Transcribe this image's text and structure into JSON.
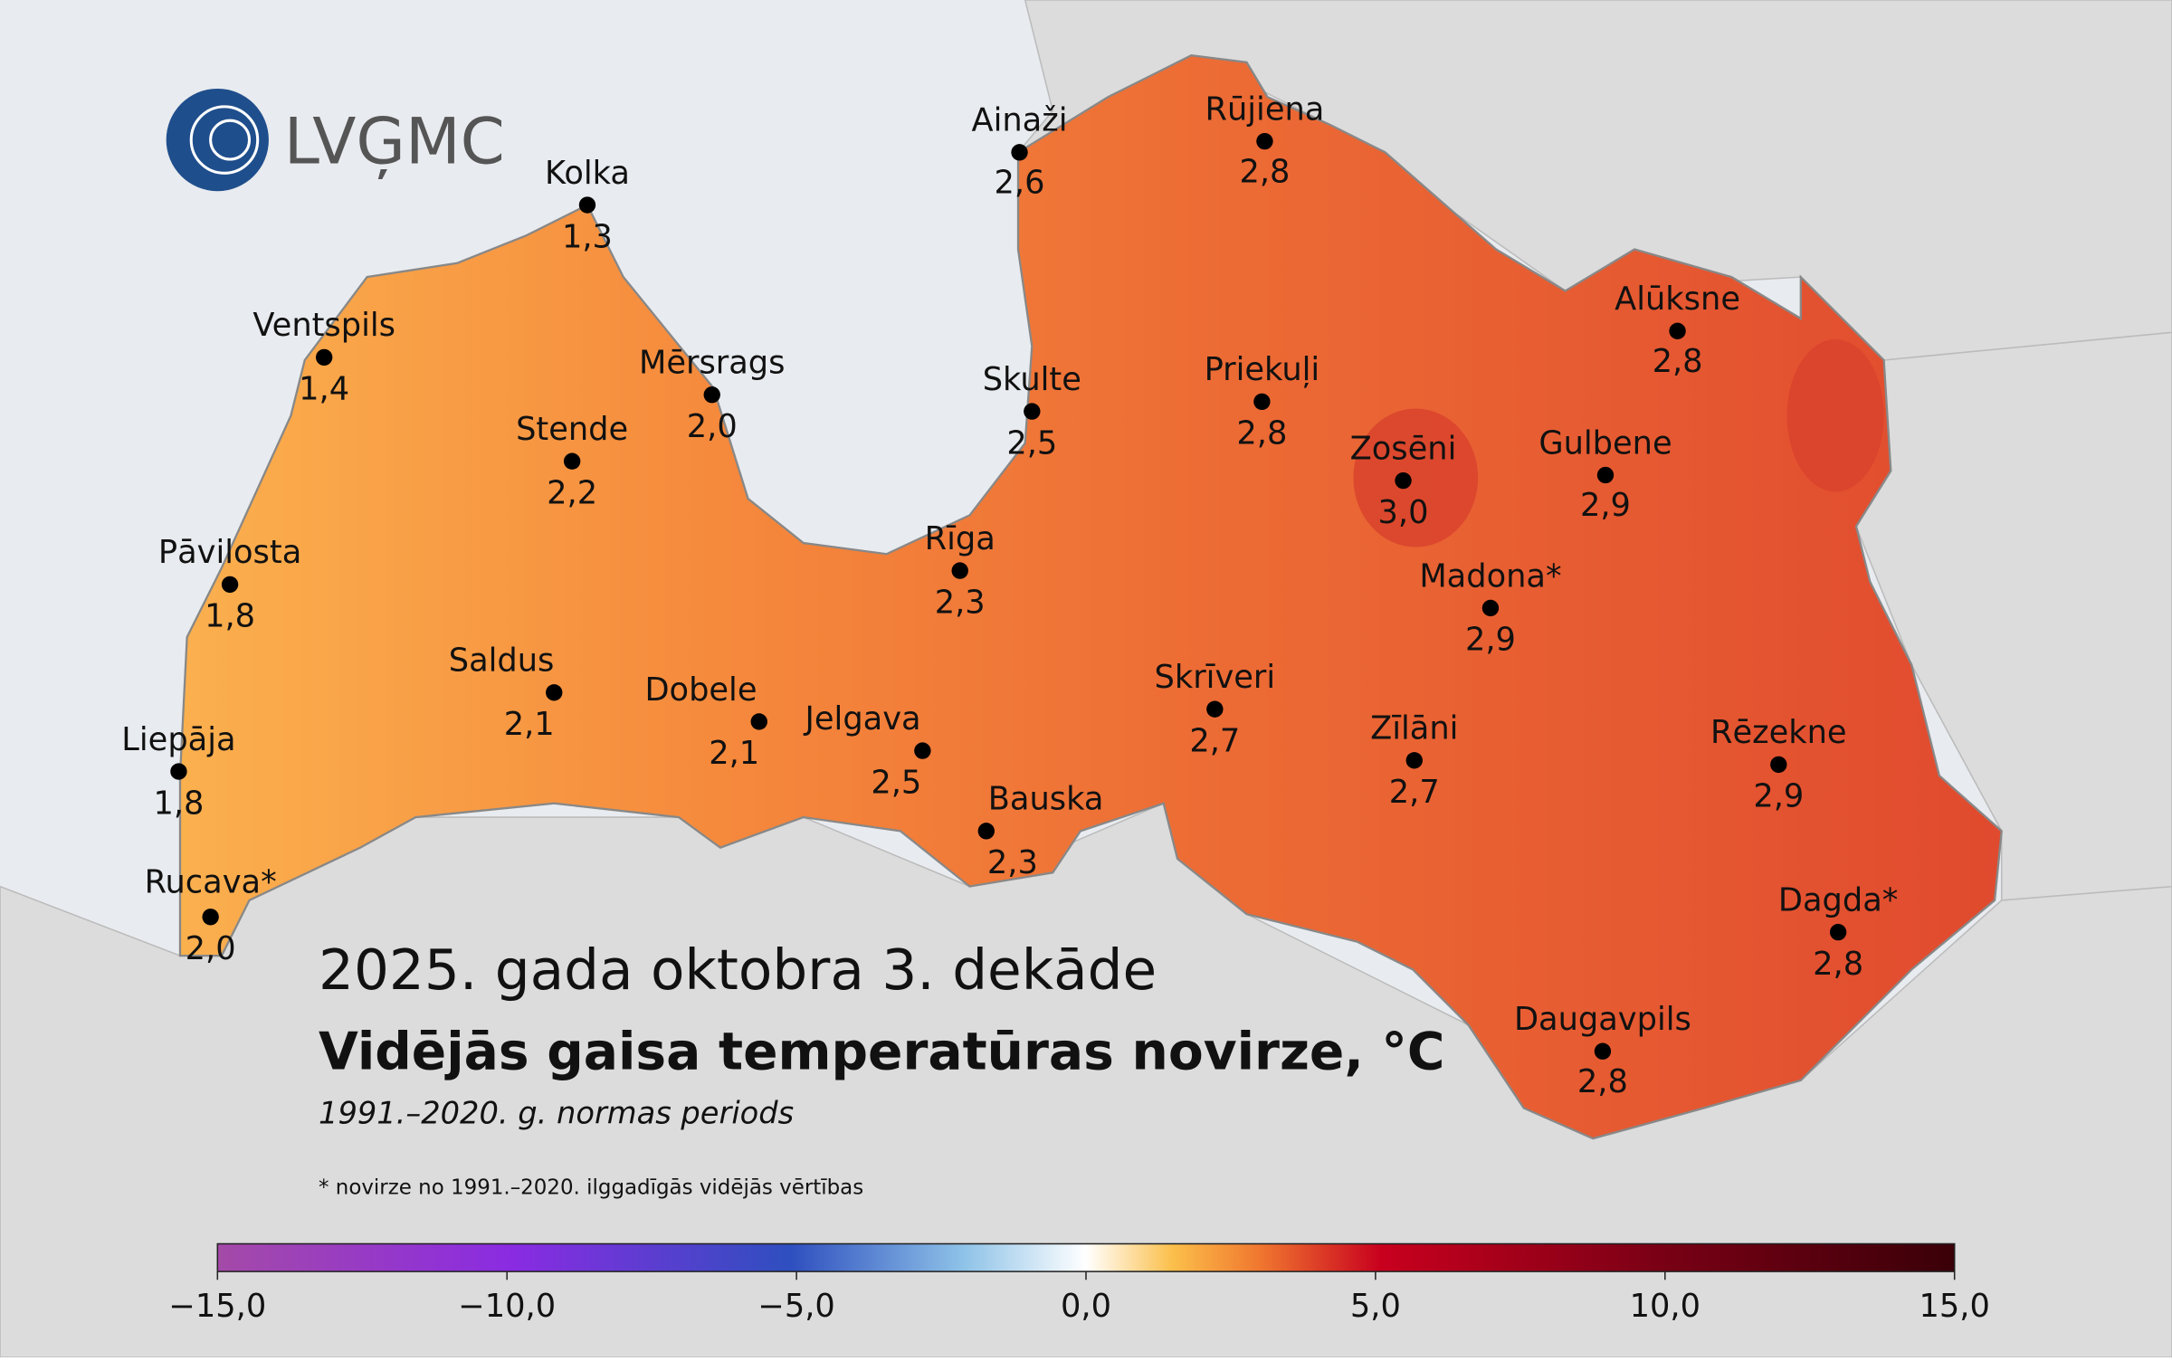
{
  "logo": {
    "text": "LVĢMC"
  },
  "header": {
    "title": "2025. gada oktobra 3. dekāde",
    "subtitle": "Vidējās gaisa temperatūras novirze, °C",
    "period": "1991.–2020. g. normas periods",
    "footnote": "* novirze no 1991.–2020. ilggadīgās vidējās vērtības"
  },
  "stations": [
    {
      "name": "Kolka",
      "value": "1,3"
    },
    {
      "name": "Ventspils",
      "value": "1,4"
    },
    {
      "name": "Mērsrags",
      "value": "2,0"
    },
    {
      "name": "Stende",
      "value": "2,2"
    },
    {
      "name": "Pāvilosta",
      "value": "1,8"
    },
    {
      "name": "Saldus",
      "value": "2,1"
    },
    {
      "name": "Dobele",
      "value": "2,1"
    },
    {
      "name": "Jelgava",
      "value": "2,5"
    },
    {
      "name": "Liepāja",
      "value": "1,8"
    },
    {
      "name": "Rucava*",
      "value": "2,0"
    },
    {
      "name": "Rīga",
      "value": "2,3"
    },
    {
      "name": "Bauska",
      "value": "2,3"
    },
    {
      "name": "Ainaži",
      "value": "2,6"
    },
    {
      "name": "Skulte",
      "value": "2,5"
    },
    {
      "name": "Rūjiena",
      "value": "2,8"
    },
    {
      "name": "Priekuļi",
      "value": "2,8"
    },
    {
      "name": "Zosēni",
      "value": "3,0"
    },
    {
      "name": "Gulbene",
      "value": "2,9"
    },
    {
      "name": "Alūksne",
      "value": "2,8"
    },
    {
      "name": "Madona*",
      "value": "2,9"
    },
    {
      "name": "Skrīveri",
      "value": "2,7"
    },
    {
      "name": "Zīlāni",
      "value": "2,7"
    },
    {
      "name": "Rēzekne",
      "value": "2,9"
    },
    {
      "name": "Dagda*",
      "value": "2,8"
    },
    {
      "name": "Daugavpils",
      "value": "2,8"
    }
  ],
  "colorbar": {
    "lim": [
      -15,
      15
    ],
    "ticks": [
      {
        "value": -15,
        "label": "−15,0"
      },
      {
        "value": -10,
        "label": "−10,0"
      },
      {
        "value": -5,
        "label": "−5,0"
      },
      {
        "value": 0,
        "label": "0,0"
      },
      {
        "value": 5,
        "label": "5,0"
      },
      {
        "value": 10,
        "label": "10,0"
      },
      {
        "value": 15,
        "label": "15,0"
      }
    ]
  }
}
